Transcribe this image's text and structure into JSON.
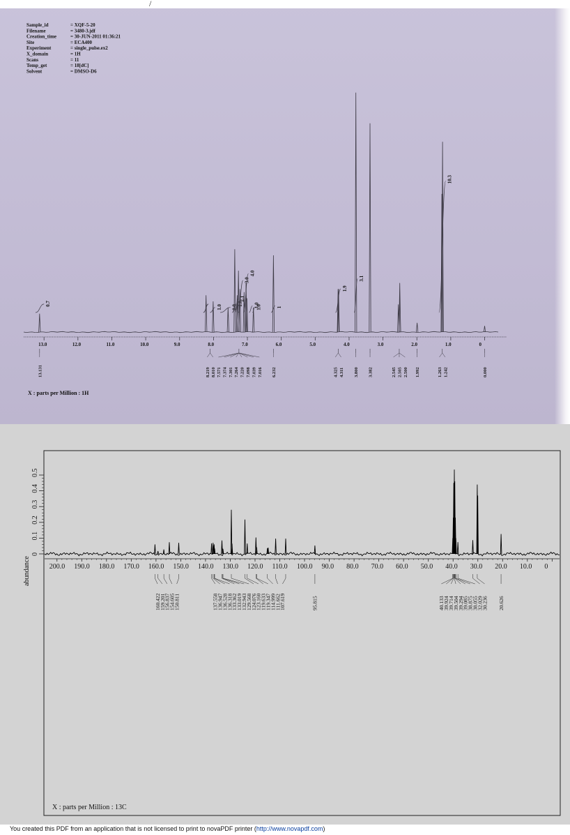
{
  "proton_header": {
    "stray_mark": "/",
    "rows": [
      {
        "key": "Sample_id",
        "value": "= XQF-5-20"
      },
      {
        "key": "Filename",
        "value": "= 3480-3.jdf"
      },
      {
        "key": "Creation_time",
        "value": "= 30-JUN-2011 01:36:21"
      },
      {
        "key": "Site",
        "value": "= ECA400"
      },
      {
        "key": "Experiment",
        "value": "= single_pulse.ex2"
      },
      {
        "key": "X_domain",
        "value": "= 1H"
      },
      {
        "key": "Scans",
        "value": "= 11"
      },
      {
        "key": "Temp_get",
        "value": "= 18[dC]"
      },
      {
        "key": "Solvent",
        "value": "= DMSO-D6"
      }
    ]
  },
  "footer": {
    "text": "You created this PDF from an application that is not licensed to print to novaPDF printer (",
    "link": "http://www.novapdf.com",
    "close": ")"
  },
  "colors": {
    "proton_trace": "#3d3a45",
    "carbon_trace": "#000000",
    "scan_background": "#c4bdd6",
    "panel_background": "#d3d3d3"
  },
  "chart_data": [
    {
      "type": "line",
      "nucleus": "1H",
      "xlabel": "X : parts per Million : 1H",
      "ylabel": "",
      "xlim": [
        13.6,
        -0.4
      ],
      "x_ticks": [
        "13.0",
        "12.0",
        "11.0",
        "10.0",
        "9.0",
        "8.0",
        "7.0",
        "6.0",
        "5.0",
        "4.0",
        "3.0",
        "2.0",
        "1.0",
        "0"
      ],
      "tick_values": [
        13,
        12,
        11,
        10,
        9,
        8,
        7,
        6,
        5,
        4,
        3,
        2,
        1,
        0
      ],
      "peaks": [
        {
          "ppm": 13.131,
          "height": 0.06
        },
        {
          "ppm": 8.219,
          "height": 0.12
        },
        {
          "ppm": 8.01,
          "height": 0.1
        },
        {
          "ppm": 7.571,
          "height": 0.08
        },
        {
          "ppm": 7.374,
          "height": 0.27
        },
        {
          "ppm": 7.301,
          "height": 0.12
        },
        {
          "ppm": 7.264,
          "height": 0.2
        },
        {
          "ppm": 7.22,
          "height": 0.14
        },
        {
          "ppm": 7.098,
          "height": 0.13
        },
        {
          "ppm": 7.039,
          "height": 0.16
        },
        {
          "ppm": 7.016,
          "height": 0.11
        },
        {
          "ppm": 6.822,
          "height": 0.08
        },
        {
          "ppm": 6.232,
          "height": 0.25
        },
        {
          "ppm": 4.325,
          "height": 0.14
        },
        {
          "ppm": 4.311,
          "height": 0.14
        },
        {
          "ppm": 3.8,
          "height": 0.78
        },
        {
          "ppm": 3.382,
          "height": 0.68
        },
        {
          "ppm": 2.545,
          "height": 0.09
        },
        {
          "ppm": 2.505,
          "height": 0.16
        },
        {
          "ppm": 2.5,
          "height": 0.11
        },
        {
          "ppm": 1.992,
          "height": 0.03
        },
        {
          "ppm": 1.263,
          "height": 0.45
        },
        {
          "ppm": 1.242,
          "height": 0.62
        },
        {
          "ppm": 0.0,
          "height": 0.02
        }
      ],
      "integrals": [
        {
          "from": 13.25,
          "to": 13.0,
          "rise": 0.05,
          "label": "0.7"
        },
        {
          "from": 8.3,
          "to": 8.15,
          "rise": 0.05,
          "label": ""
        },
        {
          "from": 8.1,
          "to": 7.95,
          "rise": 0.03,
          "label": "1.0"
        },
        {
          "from": 7.8,
          "to": 7.5,
          "rise": 0.03,
          "label": "0.9"
        },
        {
          "from": 7.45,
          "to": 7.33,
          "rise": 0.05,
          "label": "1.0"
        },
        {
          "from": 7.36,
          "to": 7.28,
          "rise": 0.08,
          "label": "2.1"
        },
        {
          "from": 7.27,
          "to": 7.13,
          "rise": 0.19,
          "label": "3.0"
        },
        {
          "from": 7.12,
          "to": 6.97,
          "rise": 0.23,
          "label": "4.0"
        },
        {
          "from": 6.95,
          "to": 6.85,
          "rise": 0.04,
          "label": "1.0"
        },
        {
          "from": 6.85,
          "to": 6.78,
          "rise": 0.03,
          "label": "1.0"
        },
        {
          "from": 6.3,
          "to": 6.18,
          "rise": 0.04,
          "label": "1"
        },
        {
          "from": 4.4,
          "to": 4.25,
          "rise": 0.14,
          "label": "1.9"
        },
        {
          "from": 3.85,
          "to": 3.75,
          "rise": 0.2,
          "label": "3.1"
        },
        {
          "from": 1.35,
          "to": 1.15,
          "rise": 0.78,
          "label": "10.3"
        }
      ],
      "peak_labels": [
        {
          "ppm": 13.131,
          "groups": [
            [
              "13.131"
            ]
          ]
        },
        {
          "ppm": 8.1,
          "groups": [
            [
              "8.219",
              "8.010"
            ]
          ]
        },
        {
          "ppm": 7.25,
          "groups": [
            [
              "7.571",
              "7.374",
              "7.301",
              "7.264",
              "7.220",
              "7.098",
              "7.039",
              "7.016"
            ]
          ]
        },
        {
          "ppm": 6.232,
          "groups": [
            [
              "6.232"
            ]
          ]
        },
        {
          "ppm": 4.32,
          "groups": [
            [
              "4.325",
              "4.311"
            ]
          ]
        },
        {
          "ppm": 3.8,
          "groups": [
            [
              "3.800"
            ]
          ]
        },
        {
          "ppm": 3.382,
          "groups": [
            [
              "3.382"
            ]
          ]
        },
        {
          "ppm": 2.52,
          "groups": [
            [
              "2.545",
              "2.505",
              "2.500"
            ]
          ]
        },
        {
          "ppm": 1.992,
          "groups": [
            [
              "1.992"
            ]
          ]
        },
        {
          "ppm": 1.25,
          "groups": [
            [
              "1.263",
              "1.242"
            ]
          ]
        },
        {
          "ppm": 0.0,
          "groups": [
            [
              "0.000"
            ]
          ]
        }
      ]
    },
    {
      "type": "line",
      "nucleus": "13C",
      "xlabel": "X : parts per Million : 13C",
      "ylabel": "abundance",
      "xlim": [
        205,
        -3
      ],
      "ylim": [
        -0.015,
        0.55
      ],
      "x_ticks": [
        "200.0",
        "190.0",
        "180.0",
        "170.0",
        "160.0",
        "150.0",
        "140.0",
        "130.0",
        "120.0",
        "110.0",
        "100.0",
        "90.0",
        "80.0",
        "70.0",
        "60.0",
        "50.0",
        "40.0",
        "30.0",
        "20.0",
        "10.0",
        "0"
      ],
      "x_tick_values": [
        200,
        190,
        180,
        170,
        160,
        150,
        140,
        130,
        120,
        110,
        100,
        90,
        80,
        70,
        60,
        50,
        40,
        30,
        20,
        10,
        0
      ],
      "y_ticks": [
        "0",
        "0.1",
        "0.2",
        "0.3",
        "0.4",
        "0.5"
      ],
      "y_tick_values": [
        0,
        0.1,
        0.2,
        0.3,
        0.4,
        0.5
      ],
      "peaks": [
        {
          "ppm": 160.422,
          "height": 0.06
        },
        {
          "ppm": 159.201,
          "height": 0.018
        },
        {
          "ppm": 156.837,
          "height": 0.028
        },
        {
          "ppm": 154.605,
          "height": 0.074
        },
        {
          "ppm": 150.811,
          "height": 0.07
        },
        {
          "ppm": 137.558,
          "height": 0.067
        },
        {
          "ppm": 136.947,
          "height": 0.07
        },
        {
          "ppm": 136.528,
          "height": 0.06
        },
        {
          "ppm": 136.318,
          "height": 0.034
        },
        {
          "ppm": 133.362,
          "height": 0.085
        },
        {
          "ppm": 133.019,
          "height": 0.033
        },
        {
          "ppm": 132.943,
          "height": 0.03
        },
        {
          "ppm": 129.568,
          "height": 0.28
        },
        {
          "ppm": 129.3,
          "height": 0.065
        },
        {
          "ppm": 124.076,
          "height": 0.218
        },
        {
          "ppm": 123.16,
          "height": 0.066
        },
        {
          "ppm": 119.633,
          "height": 0.104
        },
        {
          "ppm": 119.347,
          "height": 0.042
        },
        {
          "ppm": 114.999,
          "height": 0.036
        },
        {
          "ppm": 114.7,
          "height": 0.04
        },
        {
          "ppm": 111.662,
          "height": 0.097
        },
        {
          "ppm": 107.619,
          "height": 0.097
        },
        {
          "ppm": 95.815,
          "height": 0.053
        },
        {
          "ppm": 40.133,
          "height": 0.1
        },
        {
          "ppm": 39.924,
          "height": 0.23
        },
        {
          "ppm": 39.714,
          "height": 0.45
        },
        {
          "ppm": 39.504,
          "height": 0.535
        },
        {
          "ppm": 39.294,
          "height": 0.46
        },
        {
          "ppm": 39.085,
          "height": 0.23
        },
        {
          "ppm": 38.875,
          "height": 0.1
        },
        {
          "ppm": 38.055,
          "height": 0.075
        },
        {
          "ppm": 32.029,
          "height": 0.087
        },
        {
          "ppm": 30.236,
          "height": 0.44
        },
        {
          "ppm": 30.05,
          "height": 0.37
        },
        {
          "ppm": 20.626,
          "height": 0.126
        }
      ],
      "peak_labels": [
        {
          "ppm": 155.5,
          "groups": [
            [
              "160.422",
              "159.201",
              "156.837",
              "154.605",
              "150.811"
            ]
          ]
        },
        {
          "ppm": 122.5,
          "groups": [
            [
              "137.558",
              "136.947",
              "136.528",
              "136.318",
              "133.362",
              "133.019",
              "132.943",
              "129.568",
              "124.076",
              "123.160",
              "119.633",
              "119.347",
              "114.999",
              "111.662",
              "107.619"
            ]
          ]
        },
        {
          "ppm": 95.815,
          "groups": [
            [
              "95.815"
            ]
          ]
        },
        {
          "ppm": 36.0,
          "groups": [
            [
              "40.133",
              "39.924",
              "39.714",
              "39.504",
              "39.294",
              "39.085",
              "38.875",
              "38.055",
              "32.029",
              "30.236"
            ]
          ]
        },
        {
          "ppm": 20.626,
          "groups": [
            [
              "20.626"
            ]
          ]
        }
      ]
    }
  ]
}
